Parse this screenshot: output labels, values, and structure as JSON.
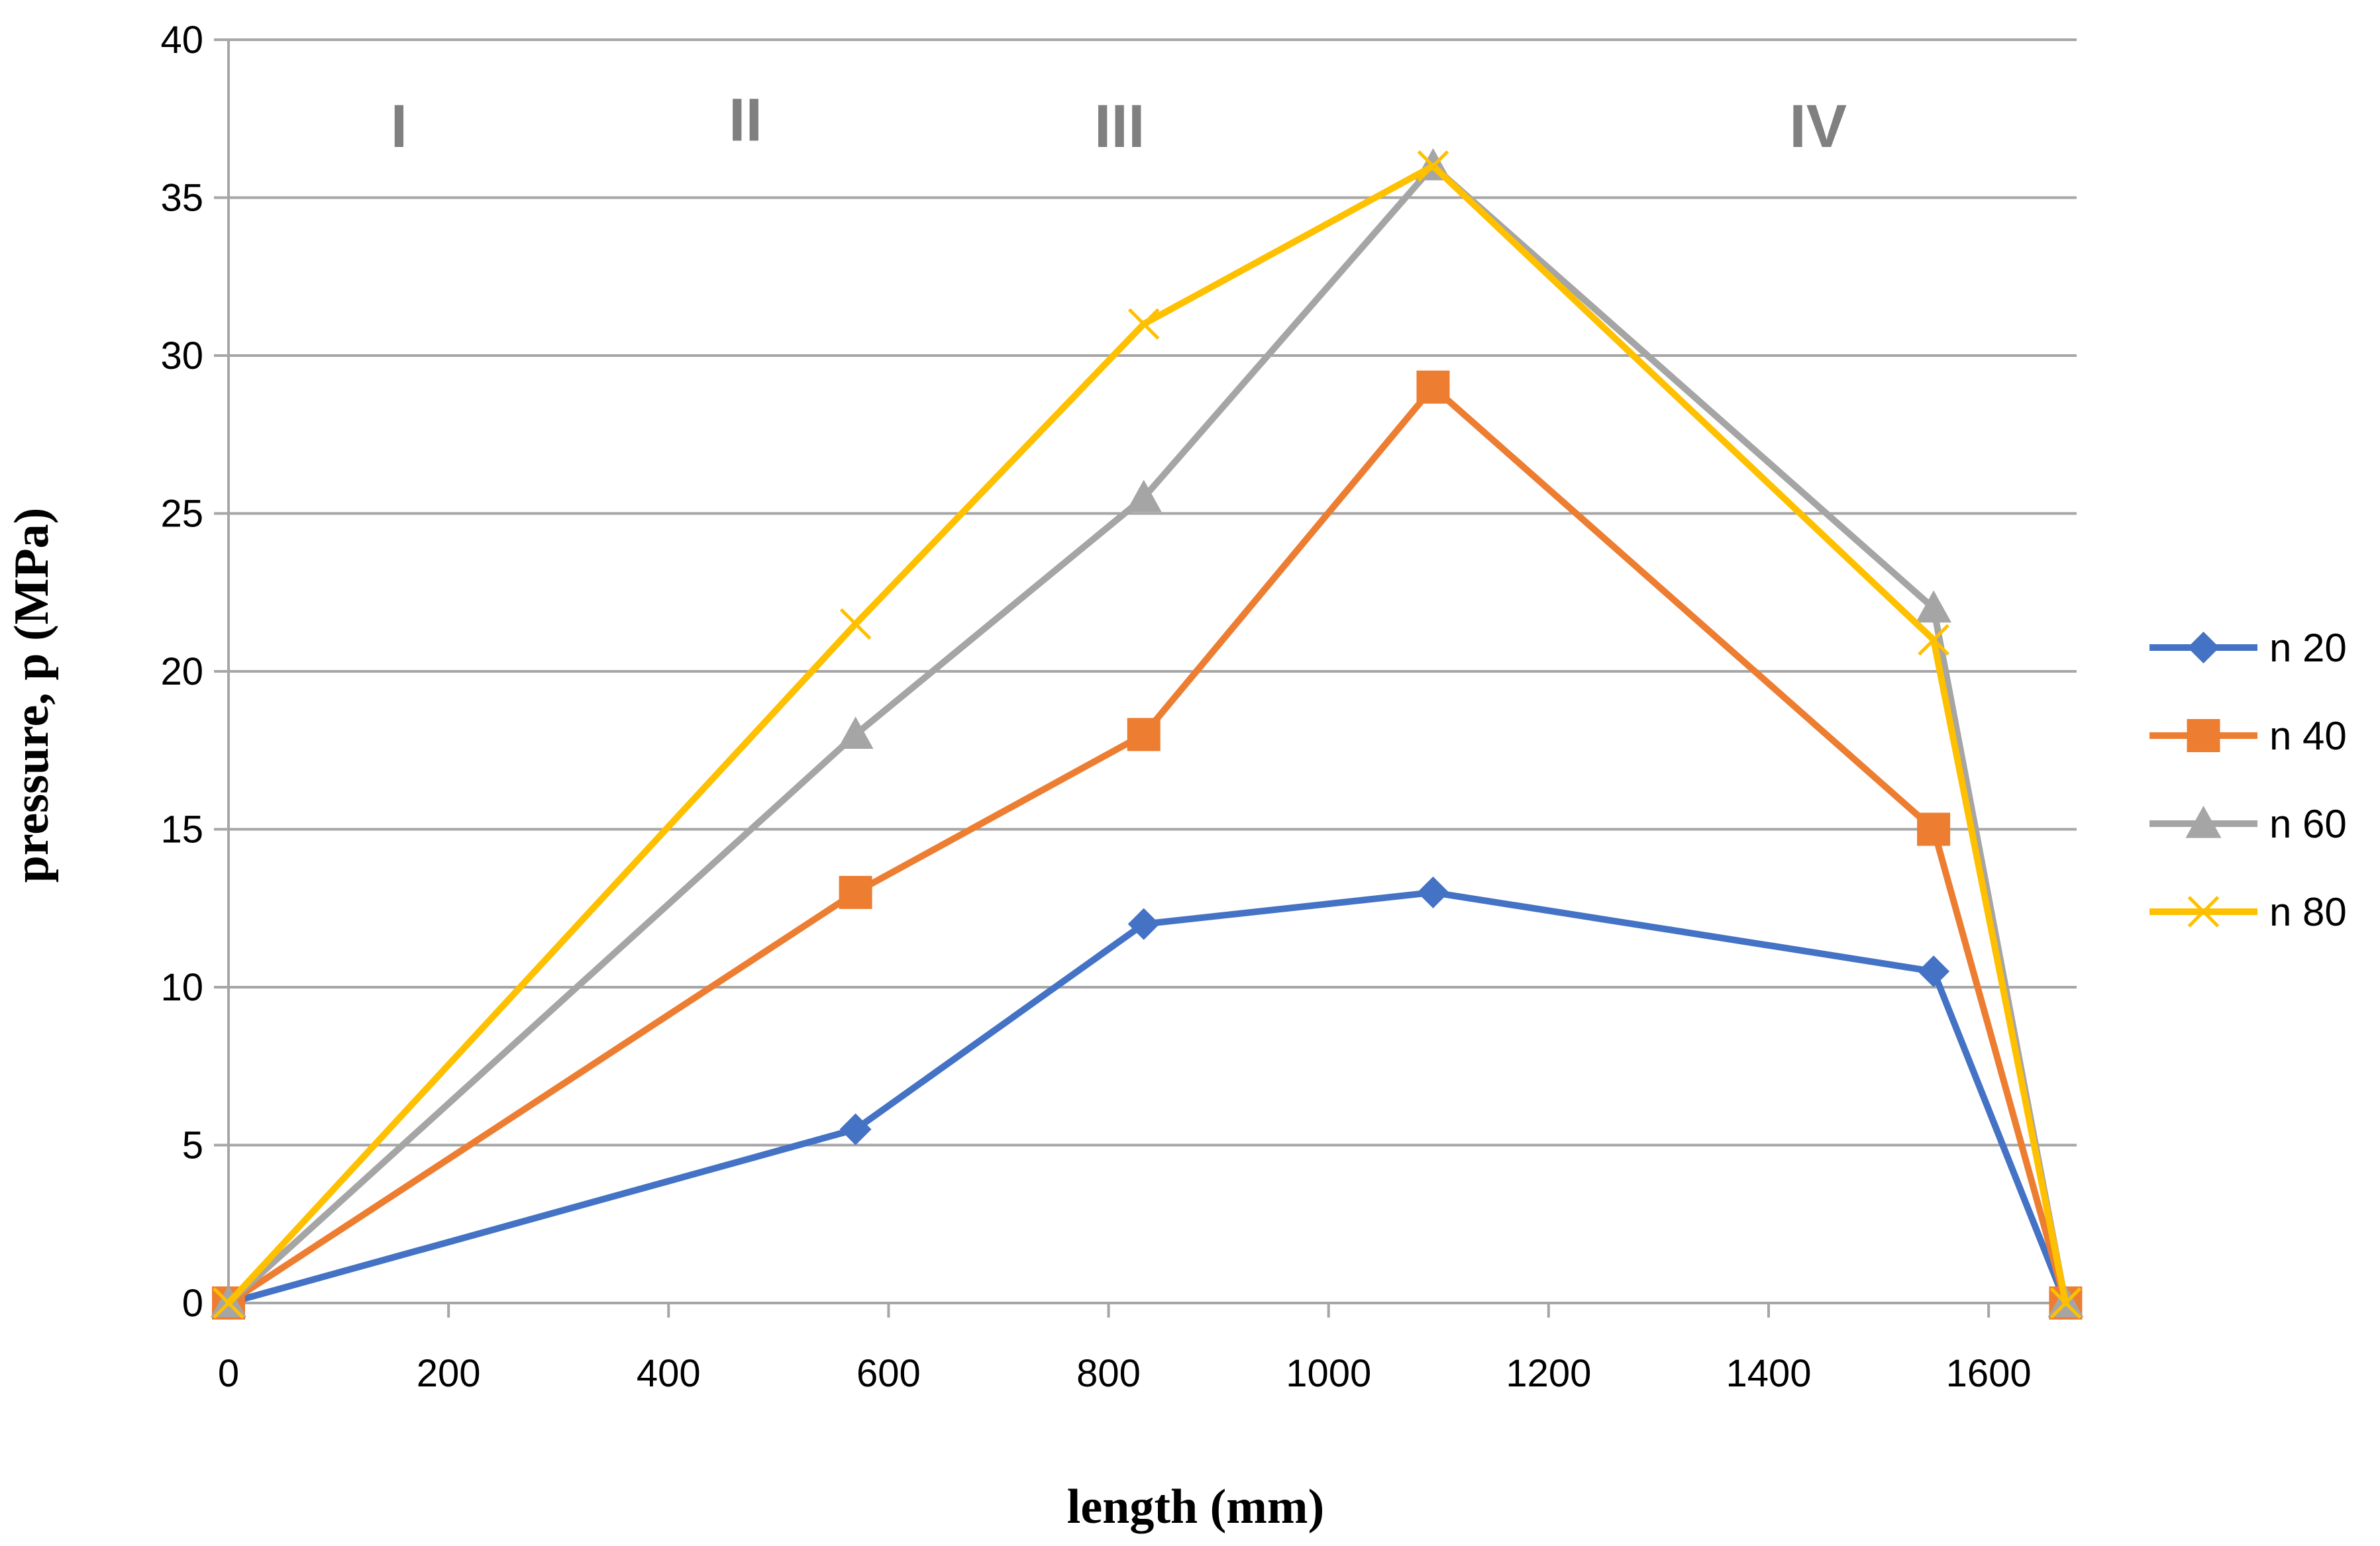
{
  "chart_data": {
    "type": "line",
    "title": "",
    "xlabel": "length (mm)",
    "ylabel": "pressure, p (MPa)",
    "xlim": [
      0,
      1680
    ],
    "ylim": [
      0,
      40
    ],
    "x_ticks": [
      0,
      200,
      400,
      600,
      800,
      1000,
      1200,
      1400,
      1600
    ],
    "y_ticks": [
      0,
      5,
      10,
      15,
      20,
      25,
      30,
      35,
      40
    ],
    "grid": "horizontal",
    "legend_position": "right",
    "regions": [
      {
        "label": "I",
        "x": 155,
        "y": 36.6
      },
      {
        "label": "II",
        "x": 470,
        "y": 36.8
      },
      {
        "label": "III",
        "x": 810,
        "y": 36.6
      },
      {
        "label": "IV",
        "x": 1445,
        "y": 36.6
      }
    ],
    "series": [
      {
        "name": "n 20",
        "color": "#4472C4",
        "marker": "diamond",
        "x": [
          0,
          570,
          832,
          1095,
          1550,
          1670
        ],
        "y": [
          0,
          5.5,
          12,
          13,
          10.5,
          0
        ]
      },
      {
        "name": "n 40",
        "color": "#ED7D31",
        "marker": "square",
        "x": [
          0,
          570,
          832,
          1095,
          1550,
          1670
        ],
        "y": [
          0,
          13,
          18,
          29,
          15,
          0
        ]
      },
      {
        "name": "n 60",
        "color": "#A5A5A5",
        "marker": "triangle",
        "x": [
          0,
          570,
          832,
          1095,
          1550,
          1670
        ],
        "y": [
          0,
          18,
          25.5,
          36,
          22,
          0
        ]
      },
      {
        "name": "n 80",
        "color": "#FFC000",
        "marker": "x",
        "x": [
          0,
          570,
          832,
          1095,
          1550,
          1670
        ],
        "y": [
          0,
          21.5,
          31,
          36,
          21,
          0
        ]
      }
    ]
  }
}
